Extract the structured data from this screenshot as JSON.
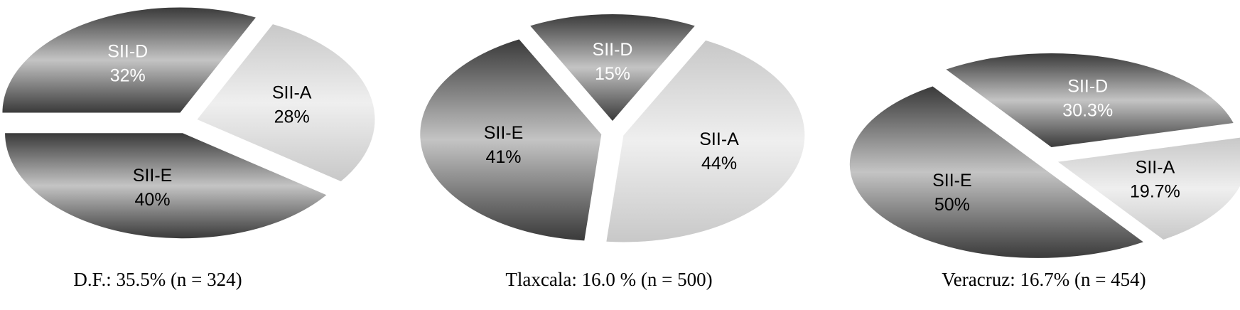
{
  "chart_data": [
    {
      "type": "pie",
      "title": "D.F.: 35.5% (n = 324)",
      "categories": [
        "SII-D",
        "SII-A",
        "SII-E"
      ],
      "values": [
        32,
        28,
        40
      ],
      "value_labels": [
        "32%",
        "28%",
        "40%"
      ],
      "colors": [
        "#3a3a3a",
        "#c8c8c8",
        "#3a3a3a"
      ]
    },
    {
      "type": "pie",
      "title": "Tlaxcala: 16.0 % (n = 500)",
      "categories": [
        "SII-D",
        "SII-A",
        "SII-E"
      ],
      "values": [
        15,
        44,
        41
      ],
      "value_labels": [
        "15%",
        "44%",
        "41%"
      ],
      "colors": [
        "#3a3a3a",
        "#c8c8c8",
        "#3a3a3a"
      ]
    },
    {
      "type": "pie",
      "title": "Veracruz: 16.7% (n = 454)",
      "categories": [
        "SII-D",
        "SII-A",
        "SII-E"
      ],
      "values": [
        30.3,
        19.7,
        50
      ],
      "value_labels": [
        "30.3%",
        "19.7%",
        "50%"
      ],
      "colors": [
        "#3a3a3a",
        "#c8c8c8",
        "#3a3a3a"
      ]
    }
  ]
}
